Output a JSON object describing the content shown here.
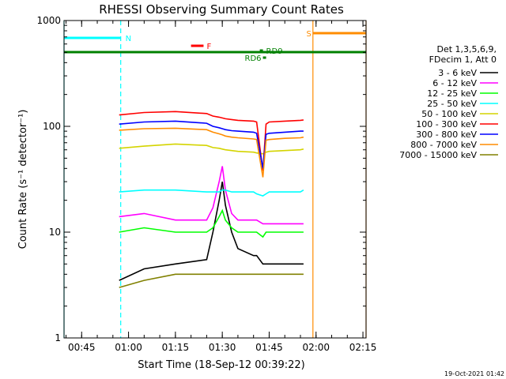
{
  "chart_data": {
    "type": "line",
    "title": "RHESSI Observing Summary Count Rates",
    "xlabel": "Start Time (18-Sep-12 00:39:22)",
    "ylabel": "Count Rate (s⁻¹ detector⁻¹)",
    "yscale": "log",
    "ylim": [
      1,
      1000
    ],
    "xlim": [
      "00:39:22",
      "02:16:00"
    ],
    "x_ticks": [
      "00:45",
      "01:00",
      "01:15",
      "01:30",
      "01:45",
      "02:00",
      "02:15"
    ],
    "y_ticks": [
      "1",
      "10",
      "100",
      "1000"
    ],
    "footer": "19-Oct-2021 01:42",
    "legend_header": [
      "Det 1,3,5,6,9,",
      "FDecim 1, Att 0"
    ],
    "legend_position": "right",
    "grid": false,
    "time_axis": [
      "00:57",
      "01:05",
      "01:15",
      "01:25",
      "01:27",
      "01:29",
      "01:30",
      "01:31",
      "01:33",
      "01:35",
      "01:40",
      "01:41",
      "01:43",
      "01:44",
      "01:45",
      "01:50",
      "01:55",
      "01:56"
    ],
    "series": [
      {
        "name": "3 - 6 keV",
        "color": "#000000",
        "values": [
          3.5,
          4.5,
          5,
          5.5,
          10,
          20,
          30,
          18,
          10,
          7,
          6,
          6,
          5,
          5,
          5,
          5,
          5,
          5
        ]
      },
      {
        "name": "6 - 12 keV",
        "color": "#ff00ff",
        "values": [
          14,
          15,
          13,
          13,
          17,
          30,
          42,
          25,
          15,
          13,
          13,
          13,
          12,
          12,
          12,
          12,
          12,
          12
        ]
      },
      {
        "name": "12 - 25 keV",
        "color": "#00ff00",
        "values": [
          10,
          11,
          10,
          10,
          11,
          14,
          16,
          13,
          11,
          10,
          10,
          10,
          9,
          10,
          10,
          10,
          10,
          10
        ]
      },
      {
        "name": "25 - 50 keV",
        "color": "#00ffff",
        "values": [
          24,
          25,
          25,
          24,
          24,
          24,
          25,
          25,
          24,
          24,
          24,
          23,
          22,
          23,
          24,
          24,
          24,
          25
        ]
      },
      {
        "name": "50 - 100 keV",
        "color": "#d4d400",
        "values": [
          62,
          65,
          68,
          66,
          63,
          62,
          61,
          60,
          59,
          58,
          57,
          56,
          55,
          57,
          58,
          59,
          60,
          61
        ]
      },
      {
        "name": "100 - 300 keV",
        "color": "#ff0000",
        "values": [
          128,
          135,
          138,
          132,
          125,
          122,
          120,
          118,
          116,
          114,
          112,
          110,
          38,
          105,
          110,
          112,
          114,
          115
        ]
      },
      {
        "name": "300 - 800 keV",
        "color": "#0000ff",
        "values": [
          105,
          110,
          112,
          107,
          100,
          97,
          95,
          93,
          91,
          90,
          88,
          86,
          40,
          84,
          86,
          88,
          90,
          90
        ]
      },
      {
        "name": "800 - 7000 keV",
        "color": "#ff8c00",
        "values": [
          92,
          95,
          96,
          93,
          88,
          85,
          83,
          81,
          79,
          78,
          76,
          75,
          33,
          74,
          75,
          77,
          78,
          79
        ]
      },
      {
        "name": "7000 - 15000 keV",
        "color": "#808000",
        "values": [
          3,
          3.5,
          4,
          4,
          4,
          4,
          4,
          4,
          4,
          4,
          4,
          4,
          4,
          4,
          4,
          4,
          4,
          4
        ]
      }
    ],
    "annotations": [
      {
        "label": "N",
        "type": "night",
        "start": "00:39:22",
        "end": "00:57:30"
      },
      {
        "label": "F",
        "type": "flare",
        "start": "01:20",
        "end": "01:24"
      },
      {
        "label": "RD9",
        "type": "data-gap",
        "start": "01:42",
        "end": "01:43"
      },
      {
        "label": "RD6",
        "type": "data-gap",
        "start": "01:43",
        "end": "01:44"
      },
      {
        "label": "S",
        "type": "saa",
        "start": "01:59",
        "end": "02:16"
      }
    ]
  }
}
